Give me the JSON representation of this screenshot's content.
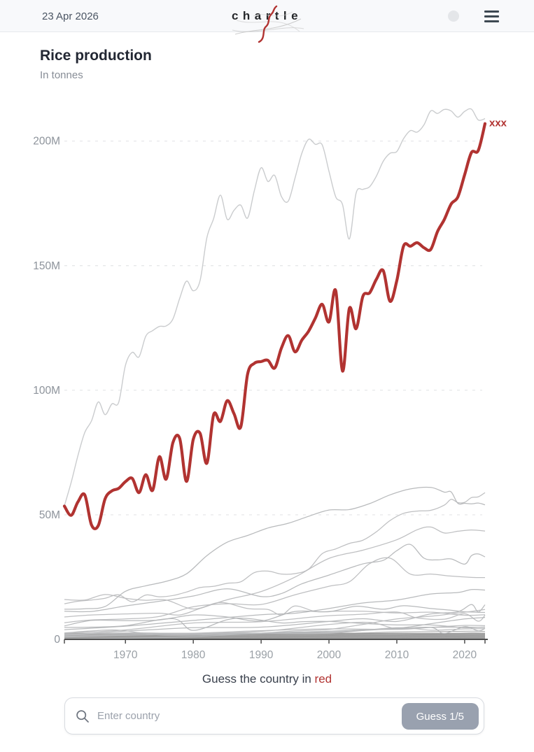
{
  "header": {
    "date": "23 Apr 2026",
    "logo_text": "chartle"
  },
  "page": {
    "title": "Rice production",
    "subtitle": "In tonnes"
  },
  "guess": {
    "prefix": "Guess the country in ",
    "highlight": "red"
  },
  "search": {
    "placeholder": "Enter country",
    "button_label": "Guess 1/5",
    "value": ""
  },
  "colors": {
    "red": "#b13331",
    "button": "#99a1af",
    "gray_line": "#b4b6b8",
    "top_gray_line": "#c7c9cb",
    "band": "#909090"
  },
  "chart_data": {
    "type": "line",
    "title": "Rice production",
    "subtitle": "In tonnes",
    "unit": "tonnes",
    "values_unit": "million tonnes",
    "grid": "horizontal dashed",
    "legend": "none",
    "x_range": [
      1961,
      2023
    ],
    "y_range": [
      0,
      215
    ],
    "x_ticks": [
      1970,
      1980,
      1990,
      2000,
      2010,
      2020
    ],
    "y_ticks": [
      {
        "value": 0,
        "label": "0"
      },
      {
        "value": 50,
        "label": "50M"
      },
      {
        "value": 100,
        "label": "100M"
      },
      {
        "value": 150,
        "label": "150M"
      },
      {
        "value": 200,
        "label": "200M"
      }
    ],
    "highlight_series": {
      "label": "xxx",
      "x_start": 1961,
      "y": [
        53.5,
        49.8,
        55.2,
        58,
        45.9,
        45.7,
        56.4,
        59.6,
        60.6,
        63.3,
        64.6,
        58.9,
        66.1,
        59.8,
        73.3,
        64.3,
        79,
        80.6,
        63.4,
        80.3,
        82.7,
        70.7,
        90.2,
        87.5,
        95.8,
        90.6,
        85.3,
        106.4,
        110.8,
        111.5,
        112,
        108.9,
        117,
        121.9,
        115.4,
        120.1,
        123.7,
        129,
        134.5,
        127.4,
        139.9,
        107.7,
        132.8,
        124.7,
        137.7,
        139.1,
        144.6,
        148,
        135.7,
        144,
        157.9,
        157.8,
        159.2,
        157.2,
        156.5,
        163.7,
        168.5,
        174.7,
        177.6,
        186.5,
        195.4,
        196.2,
        207
      ]
    },
    "background_series": [
      {
        "x_start": 1961,
        "y": [
          53.6,
          63,
          73.8,
          83,
          87.7,
          95.3,
          90.2,
          94.5,
          95.1,
          110,
          115.2,
          113.4,
          121.7,
          123.9,
          125.6,
          125.8,
          128.6,
          136.9,
          143.8,
          139.9,
          144,
          161.2,
          168.9,
          178.3,
          168.6,
          172.2,
          174.3,
          169.1,
          180.1,
          189.3,
          183.8,
          186.2,
          177.7,
          175.9,
          185.2,
          195.1,
          200.7,
          198.7,
          198.5,
          187.9,
          177.6,
          174.5,
          160.7,
          179.1,
          180.6,
          181.7,
          186,
          191.9,
          195.1,
          195.8,
          201,
          204.2,
          203.6,
          206.5,
          212.1,
          211.1,
          212.7,
          212.1,
          209.6,
          211.9,
          212.8,
          208.5,
          209
        ]
      },
      {
        "x": [
          1961,
          1963,
          1965,
          1967,
          1969,
          1971,
          1973,
          1975,
          1977,
          1979,
          1981,
          1983,
          1985,
          1987,
          1989,
          1991,
          1993,
          1995,
          1997,
          1999,
          2001,
          2003,
          2005,
          2007,
          2009,
          2011,
          2013,
          2015,
          2017,
          2018,
          2019,
          2020,
          2021,
          2022,
          2023
        ],
        "y": [
          14.3,
          15.3,
          15.8,
          16.5,
          17.9,
          15.1,
          17.8,
          17.1,
          17.6,
          19,
          20.8,
          21.3,
          22.5,
          23.1,
          26.8,
          27.4,
          26.2,
          26.4,
          28.2,
          34.4,
          36.3,
          38.5,
          39.8,
          43.2,
          47.7,
          50.6,
          51.5,
          51.8,
          53.9,
          56.2,
          54.9,
          55,
          56.9,
          57.2,
          58.9
        ]
      },
      {
        "x": [
          1961,
          1964,
          1967,
          1970,
          1973,
          1976,
          1979,
          1982,
          1985,
          1988,
          1991,
          1994,
          1997,
          2000,
          2003,
          2006,
          2009,
          2012,
          2015,
          2017,
          2018,
          2019,
          2020,
          2021,
          2022,
          2023
        ],
        "y": [
          12.1,
          12.3,
          13.2,
          19.3,
          21.5,
          23.3,
          26.3,
          33.6,
          39,
          41.7,
          44.7,
          46.6,
          49.4,
          51.9,
          52.1,
          54.5,
          58,
          60.4,
          61,
          59.1,
          59.2,
          54.6,
          54.6,
          54.4,
          54.7,
          54
        ]
      },
      {
        "x": [
          1961,
          1965,
          1970,
          1975,
          1978,
          1981,
          1985,
          1990,
          1995,
          2000,
          2005,
          2010,
          2013,
          2015,
          2017,
          2019,
          2021,
          2023
        ],
        "y": [
          9,
          9.8,
          10.2,
          10.5,
          9.8,
          12.4,
          15.9,
          19.2,
          25,
          32.5,
          35.8,
          40,
          44,
          45.1,
          42.7,
          43.4,
          43.9,
          43.5
        ]
      },
      {
        "x": [
          1961,
          1965,
          1970,
          1975,
          1980,
          1985,
          1990,
          1993,
          1996,
          2000,
          2005,
          2008,
          2010,
          2012,
          2014,
          2016,
          2018,
          2020,
          2021,
          2022,
          2023
        ],
        "y": [
          11.3,
          11.2,
          13.4,
          15.3,
          17.4,
          20.3,
          17.2,
          18.4,
          22.3,
          25.8,
          30.3,
          31.7,
          35.6,
          38.1,
          32.6,
          31.9,
          32.3,
          30.2,
          33.6,
          34.3,
          33.1
        ]
      },
      {
        "x": [
          1961,
          1965,
          1970,
          1975,
          1980,
          1985,
          1990,
          1995,
          2000,
          2003,
          2006,
          2009,
          2012,
          2015,
          2018,
          2021,
          2023
        ],
        "y": [
          6.7,
          7.8,
          8.2,
          9.2,
          13.1,
          14.3,
          14,
          17.9,
          21.3,
          23.1,
          30.4,
          32.6,
          26.2,
          26.2,
          25.4,
          24.9,
          24.8
        ]
      },
      {
        "x": [
          1961,
          1970,
          1980,
          1990,
          1995,
          2000,
          2005,
          2010,
          2015,
          2019,
          2021,
          2023
        ],
        "y": [
          3.9,
          5.3,
          7.6,
          9.9,
          10.5,
          12.4,
          14.6,
          15.8,
          18.2,
          18.8,
          20,
          19.8
        ]
      },
      {
        "x": [
          1961,
          1964,
          1967,
          1970,
          1973,
          1976,
          1980,
          1984,
          1988,
          1991,
          1993,
          1995,
          1998,
          2001,
          2005,
          2010,
          2015,
          2020,
          2023
        ],
        "y": [
          16,
          15.8,
          18,
          16.5,
          15.7,
          15.8,
          12.2,
          14.8,
          12.4,
          12,
          9.8,
          13.4,
          11.2,
          11.3,
          11.3,
          10.6,
          10.9,
          9.7,
          9.9
        ]
      },
      {
        "x": [
          1961,
          1965,
          1970,
          1975,
          1980,
          1985,
          1990,
          1995,
          2000,
          2004,
          2008,
          2011,
          2015,
          2018,
          2020,
          2023
        ],
        "y": [
          5.4,
          7.6,
          7.5,
          7.8,
          9.8,
          9,
          7.4,
          11.2,
          11.1,
          13.3,
          12.1,
          13.5,
          12.4,
          11.7,
          11.1,
          10.8
        ]
      },
      {
        "x": [
          1961,
          1970,
          1980,
          1990,
          1999,
          2005,
          2010,
          2013,
          2017,
          2020,
          2022,
          2023
        ],
        "y": [
          2.5,
          3.8,
          6.6,
          7.1,
          9.3,
          10.1,
          11,
          8.6,
          8.1,
          10.3,
          7.3,
          9.7
        ]
      },
      {
        "x": [
          1961,
          1970,
          1980,
          1990,
          2000,
          2005,
          2010,
          2015,
          2019,
          2021,
          2022,
          2023
        ],
        "y": [
          1.8,
          3.3,
          4.7,
          4.9,
          7.2,
          8.3,
          7.2,
          10.2,
          11.1,
          14,
          11,
          13.9
        ]
      },
      {
        "x": [
          1961,
          1968,
          1972,
          1975,
          1980,
          1985,
          1990,
          1995,
          2000,
          2005,
          2010,
          2015,
          2020,
          2023
        ],
        "y": [
          2.6,
          3.8,
          2.7,
          1.8,
          1.7,
          2.1,
          2.5,
          3.4,
          4,
          6,
          8.2,
          9.3,
          10.9,
          12
        ]
      },
      {
        "x": [
          1961,
          1965,
          1970,
          1977,
          1980,
          1985,
          1988,
          1993,
          1996,
          2000,
          2005,
          2010,
          2015,
          2020,
          2023
        ],
        "y": [
          4.8,
          4.9,
          5.5,
          8.3,
          3.6,
          7.9,
          8.4,
          6.6,
          7.1,
          7.2,
          6.4,
          5.8,
          5.8,
          4.7,
          5
        ]
      },
      {
        "x": [
          1961,
          1970,
          1980,
          1990,
          2000,
          2006,
          2010,
          2015,
          2020,
          2023
        ],
        "y": [
          1.6,
          2.6,
          2.4,
          3.2,
          6,
          6.8,
          4.3,
          4.8,
          4.9,
          4.8
        ]
      },
      {
        "x": [
          1961,
          1970,
          1980,
          1990,
          2000,
          2010,
          2015,
          2020,
          2023
        ],
        "y": [
          0.2,
          0.5,
          1.1,
          2.5,
          3.3,
          4.5,
          6.3,
          8.2,
          8.8
        ]
      },
      {
        "x": [
          1961,
          1970,
          1980,
          1990,
          2000,
          2010,
          2015,
          2020,
          2023
        ],
        "y": [
          2.1,
          2.4,
          2.5,
          3.5,
          4.2,
          4,
          4.8,
          5.6,
          5.5
        ]
      },
      {
        "x": [
          1961,
          1970,
          1980,
          1990,
          2000,
          2010,
          2015,
          2017,
          2020,
          2022,
          2023
        ],
        "y": [
          0.9,
          1.6,
          2.1,
          2.5,
          2.9,
          4.3,
          4.8,
          2.4,
          5.1,
          3.4,
          4.4
        ]
      },
      {
        "x": [
          1961,
          1970,
          1980,
          1990,
          2000,
          2010,
          2015,
          2020,
          2023
        ],
        "y": [
          1.2,
          1.9,
          2.1,
          2.4,
          2.5,
          4.7,
          3.7,
          4.2,
          4.3
        ]
      }
    ],
    "dense_band": {
      "description": "many overlapping country lines clustered near zero",
      "y_top": 2.6,
      "lines": [
        {
          "x": [
            1961,
            1967,
            1973,
            1979,
            1985,
            1991,
            1997,
            2003,
            2009,
            2015,
            2021,
            2023
          ],
          "y": [
            2.1,
            2.3,
            2,
            2.4,
            2.6,
            2.3,
            2.7,
            2.5,
            2.9,
            3.1,
            3.3,
            3.2
          ]
        },
        {
          "x": [
            1961,
            1967,
            1973,
            1979,
            1985,
            1991,
            1997,
            2003,
            2009,
            2015,
            2021,
            2023
          ],
          "y": [
            1.6,
            1.8,
            1.5,
            1.9,
            1.7,
            2.1,
            1.8,
            2.2,
            2.4,
            2.2,
            2.6,
            2.5
          ]
        },
        {
          "x": [
            1961,
            1967,
            1973,
            1979,
            1985,
            1991,
            1997,
            2003,
            2009,
            2015,
            2021,
            2023
          ],
          "y": [
            1.1,
            1.3,
            1,
            1.4,
            1.2,
            1.5,
            1.3,
            1.7,
            1.5,
            1.9,
            1.7,
            1.8
          ]
        },
        {
          "x": [
            1961,
            1967,
            1973,
            1979,
            1985,
            1991,
            1997,
            2003,
            2009,
            2015,
            2021,
            2023
          ],
          "y": [
            0.7,
            0.9,
            0.6,
            1,
            0.8,
            1.1,
            0.9,
            1.3,
            1.1,
            1.4,
            1.2,
            1.3
          ]
        },
        {
          "x": [
            1961,
            1967,
            1973,
            1979,
            1985,
            1991,
            1997,
            2003,
            2009,
            2015,
            2021,
            2023
          ],
          "y": [
            0.4,
            0.5,
            0.3,
            0.6,
            0.4,
            0.7,
            0.5,
            0.8,
            0.6,
            0.9,
            0.7,
            0.8
          ]
        },
        {
          "x": [
            1961,
            1967,
            1973,
            1979,
            1985,
            1991,
            1997,
            2003,
            2009,
            2015,
            2021,
            2023
          ],
          "y": [
            0.2,
            0.25,
            0.15,
            0.3,
            0.2,
            0.35,
            0.25,
            0.4,
            0.3,
            0.45,
            0.35,
            0.4
          ]
        }
      ]
    }
  }
}
